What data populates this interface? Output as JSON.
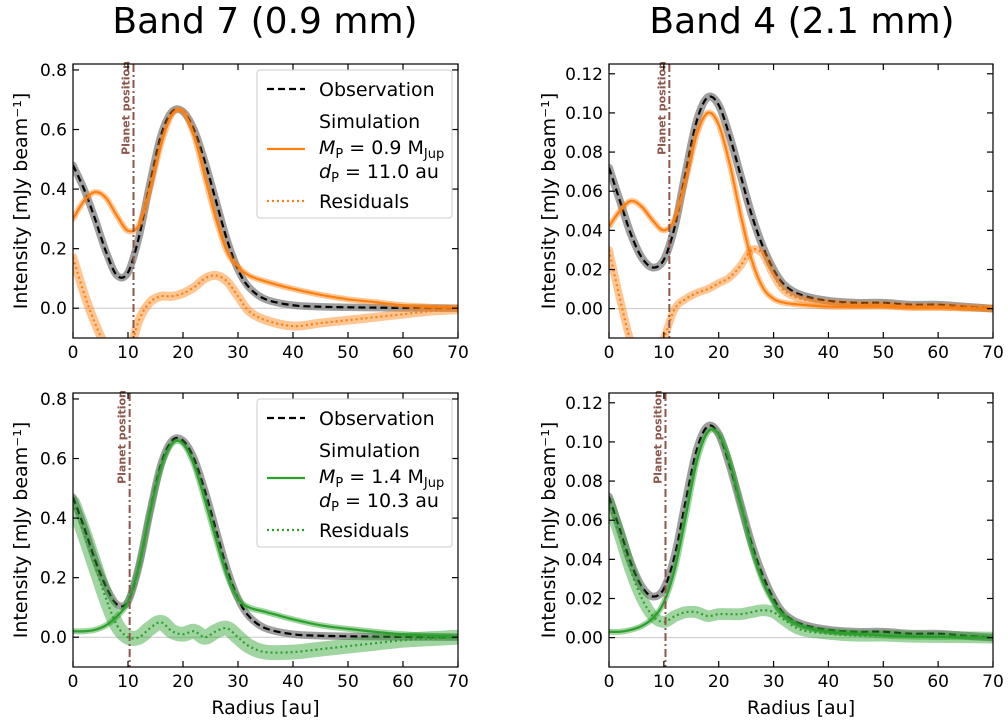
{
  "figure": {
    "column_titles": [
      "Band 7 (0.9 mm)",
      "Band 4 (2.1 mm)"
    ],
    "colors": {
      "observation": "#000000",
      "observation_band": "#7f7f7f",
      "band7_first_row": "#ff7f0e",
      "second_row": "#2ca02c",
      "planet_line": "#8c564b",
      "zero_line": "#c8c8c8"
    }
  },
  "chart_data": [
    {
      "type": "line",
      "panel": "top-left",
      "xlabel": "",
      "ylabel": "Intensity [mJy beam⁻¹]",
      "xlim": [
        0,
        70
      ],
      "ylim": [
        -0.1,
        0.82
      ],
      "xticks": [
        "0",
        "10",
        "20",
        "30",
        "40",
        "50",
        "60",
        "70"
      ],
      "yticks": [
        "0.0",
        "0.2",
        "0.4",
        "0.6",
        "0.8"
      ],
      "ytick_values": [
        0,
        0.2,
        0.4,
        0.6,
        0.8
      ],
      "planet_position": 11.0,
      "planet_label": "Planet position",
      "legend": {
        "placement": "top-right",
        "observation": "Observation",
        "simulation": "Simulation",
        "mass": "Mₚ = 0.9 M_Jup",
        "mass_parts": [
          "M",
          "P",
          " = 0.9 M",
          "Jup"
        ],
        "dist_parts": [
          "d",
          "P",
          " = 11.0 au"
        ],
        "residuals": "Residuals"
      },
      "color": "#ff7f0e",
      "x": [
        0,
        2,
        4,
        6,
        8,
        10,
        12,
        14,
        16,
        18,
        20,
        22,
        24,
        26,
        28,
        30,
        32,
        35,
        40,
        45,
        50,
        55,
        60,
        65,
        70
      ],
      "series": [
        {
          "name": "Observation",
          "style": "dashed",
          "band_width": 0.025,
          "values": [
            0.48,
            0.4,
            0.3,
            0.19,
            0.11,
            0.12,
            0.24,
            0.42,
            0.58,
            0.66,
            0.66,
            0.6,
            0.49,
            0.36,
            0.23,
            0.13,
            0.07,
            0.03,
            0.01,
            0.005,
            0.003,
            0.002,
            0.001,
            0.0005,
            0.0
          ]
        },
        {
          "name": "Simulation",
          "style": "solid",
          "band_width": 0.02,
          "values": [
            0.3,
            0.36,
            0.39,
            0.37,
            0.31,
            0.26,
            0.28,
            0.4,
            0.55,
            0.65,
            0.66,
            0.58,
            0.44,
            0.3,
            0.19,
            0.14,
            0.11,
            0.09,
            0.065,
            0.045,
            0.03,
            0.02,
            0.01,
            0.005,
            0.002
          ]
        },
        {
          "name": "Residuals",
          "style": "dotted",
          "band_width": 0.03,
          "values": [
            0.17,
            0.05,
            -0.05,
            -0.13,
            -0.18,
            -0.16,
            -0.04,
            0.02,
            0.04,
            0.04,
            0.05,
            0.07,
            0.1,
            0.11,
            0.09,
            0.04,
            -0.01,
            -0.04,
            -0.06,
            -0.05,
            -0.04,
            -0.03,
            -0.02,
            -0.01,
            -0.005
          ]
        }
      ]
    },
    {
      "type": "line",
      "panel": "top-right",
      "xlabel": "",
      "ylabel": "Intensity [mJy beam⁻¹]",
      "xlim": [
        0,
        70
      ],
      "ylim": [
        -0.015,
        0.125
      ],
      "xticks": [
        "0",
        "10",
        "20",
        "30",
        "40",
        "50",
        "60",
        "70"
      ],
      "yticks": [
        "0.00",
        "0.02",
        "0.04",
        "0.06",
        "0.08",
        "0.10",
        "0.12"
      ],
      "ytick_values": [
        0,
        0.02,
        0.04,
        0.06,
        0.08,
        0.1,
        0.12
      ],
      "planet_position": 11.0,
      "planet_label": "Planet position",
      "color": "#ff7f0e",
      "x": [
        0,
        2,
        4,
        6,
        8,
        10,
        12,
        14,
        16,
        18,
        20,
        22,
        24,
        26,
        28,
        30,
        32,
        35,
        40,
        45,
        50,
        55,
        60,
        65,
        70
      ],
      "series": [
        {
          "name": "Observation",
          "style": "dashed",
          "band_width": 0.004,
          "values": [
            0.072,
            0.055,
            0.038,
            0.026,
            0.021,
            0.025,
            0.042,
            0.07,
            0.096,
            0.108,
            0.104,
            0.088,
            0.068,
            0.048,
            0.032,
            0.02,
            0.012,
            0.007,
            0.004,
            0.003,
            0.003,
            0.002,
            0.002,
            0.001,
            0.0
          ]
        },
        {
          "name": "Simulation",
          "style": "solid",
          "band_width": 0.003,
          "values": [
            0.042,
            0.05,
            0.055,
            0.052,
            0.045,
            0.04,
            0.046,
            0.066,
            0.089,
            0.1,
            0.094,
            0.074,
            0.048,
            0.025,
            0.011,
            0.005,
            0.003,
            0.002,
            0.001,
            0.001,
            0.001,
            0.0005,
            0.0005,
            0.0002,
            0.0
          ]
        },
        {
          "name": "Residuals",
          "style": "dotted",
          "band_width": 0.004,
          "values": [
            0.03,
            0.005,
            -0.017,
            -0.027,
            -0.024,
            -0.015,
            0.0,
            0.005,
            0.008,
            0.01,
            0.013,
            0.016,
            0.022,
            0.03,
            0.028,
            0.017,
            0.009,
            0.005,
            0.003,
            0.002,
            0.002,
            0.001,
            0.001,
            0.0005,
            0.0
          ]
        }
      ]
    },
    {
      "type": "line",
      "panel": "bottom-left",
      "xlabel": "Radius  [au]",
      "ylabel": "Intensity [mJy beam⁻¹]",
      "xlim": [
        0,
        70
      ],
      "ylim": [
        -0.1,
        0.82
      ],
      "xticks": [
        "0",
        "10",
        "20",
        "30",
        "40",
        "50",
        "60",
        "70"
      ],
      "yticks": [
        "0.0",
        "0.2",
        "0.4",
        "0.6",
        "0.8"
      ],
      "ytick_values": [
        0,
        0.2,
        0.4,
        0.6,
        0.8
      ],
      "planet_position": 10.3,
      "planet_label": "Planet position",
      "legend": {
        "placement": "top-right",
        "observation": "Observation",
        "simulation": "Simulation",
        "mass_parts": [
          "M",
          "P",
          " = 1.4 M",
          "Jup"
        ],
        "dist_parts": [
          "d",
          "P",
          " = 10.3 au"
        ],
        "residuals": "Residuals"
      },
      "color": "#2ca02c",
      "x": [
        0,
        2,
        4,
        6,
        8,
        10,
        12,
        14,
        16,
        18,
        20,
        22,
        24,
        26,
        28,
        30,
        32,
        35,
        40,
        45,
        50,
        55,
        60,
        65,
        70
      ],
      "series": [
        {
          "name": "Observation",
          "style": "dashed",
          "band_width": 0.025,
          "values": [
            0.47,
            0.37,
            0.26,
            0.17,
            0.11,
            0.12,
            0.24,
            0.42,
            0.58,
            0.66,
            0.66,
            0.6,
            0.49,
            0.36,
            0.23,
            0.13,
            0.07,
            0.03,
            0.01,
            0.005,
            0.003,
            0.002,
            0.001,
            0.0005,
            0.0
          ]
        },
        {
          "name": "Simulation",
          "style": "solid",
          "band_width": 0.02,
          "values": [
            0.02,
            0.02,
            0.025,
            0.04,
            0.07,
            0.12,
            0.24,
            0.42,
            0.57,
            0.65,
            0.65,
            0.58,
            0.46,
            0.33,
            0.21,
            0.13,
            0.1,
            0.085,
            0.06,
            0.04,
            0.028,
            0.018,
            0.01,
            0.005,
            0.002
          ]
        },
        {
          "name": "Residuals",
          "style": "dotted",
          "band_width": 0.05,
          "values": [
            0.45,
            0.35,
            0.24,
            0.13,
            0.04,
            0.0,
            0.0,
            0.03,
            0.05,
            0.02,
            0.01,
            0.02,
            0.0,
            0.02,
            0.03,
            0.0,
            -0.03,
            -0.05,
            -0.05,
            -0.04,
            -0.03,
            -0.02,
            -0.01,
            -0.005,
            0.0
          ]
        }
      ]
    },
    {
      "type": "line",
      "panel": "bottom-right",
      "xlabel": "Radius  [au]",
      "ylabel": "Intensity [mJy beam⁻¹]",
      "xlim": [
        0,
        70
      ],
      "ylim": [
        -0.015,
        0.125
      ],
      "xticks": [
        "0",
        "10",
        "20",
        "30",
        "40",
        "50",
        "60",
        "70"
      ],
      "yticks": [
        "0.00",
        "0.02",
        "0.04",
        "0.06",
        "0.08",
        "0.10",
        "0.12"
      ],
      "ytick_values": [
        0,
        0.02,
        0.04,
        0.06,
        0.08,
        0.1,
        0.12
      ],
      "planet_position": 10.3,
      "planet_label": "Planet position",
      "color": "#2ca02c",
      "x": [
        0,
        2,
        4,
        6,
        8,
        10,
        12,
        14,
        16,
        18,
        20,
        22,
        24,
        26,
        28,
        30,
        32,
        35,
        40,
        45,
        50,
        55,
        60,
        65,
        70
      ],
      "series": [
        {
          "name": "Observation",
          "style": "dashed",
          "band_width": 0.004,
          "values": [
            0.072,
            0.055,
            0.038,
            0.026,
            0.021,
            0.025,
            0.042,
            0.07,
            0.096,
            0.108,
            0.104,
            0.088,
            0.068,
            0.048,
            0.032,
            0.02,
            0.012,
            0.007,
            0.004,
            0.003,
            0.003,
            0.002,
            0.002,
            0.001,
            0.0
          ]
        },
        {
          "name": "Simulation",
          "style": "solid",
          "band_width": 0.003,
          "values": [
            0.003,
            0.003,
            0.004,
            0.006,
            0.01,
            0.018,
            0.035,
            0.062,
            0.09,
            0.105,
            0.104,
            0.09,
            0.068,
            0.046,
            0.029,
            0.018,
            0.011,
            0.006,
            0.003,
            0.002,
            0.001,
            0.0005,
            0.0003,
            0.0002,
            0.0
          ]
        },
        {
          "name": "Residuals",
          "style": "dotted",
          "band_width": 0.006,
          "values": [
            0.069,
            0.052,
            0.034,
            0.02,
            0.011,
            0.008,
            0.011,
            0.013,
            0.013,
            0.011,
            0.012,
            0.012,
            0.012,
            0.013,
            0.014,
            0.013,
            0.009,
            0.004,
            0.002,
            0.001,
            0.001,
            0.0005,
            0.0003,
            0.0002,
            0.0
          ]
        }
      ]
    }
  ]
}
